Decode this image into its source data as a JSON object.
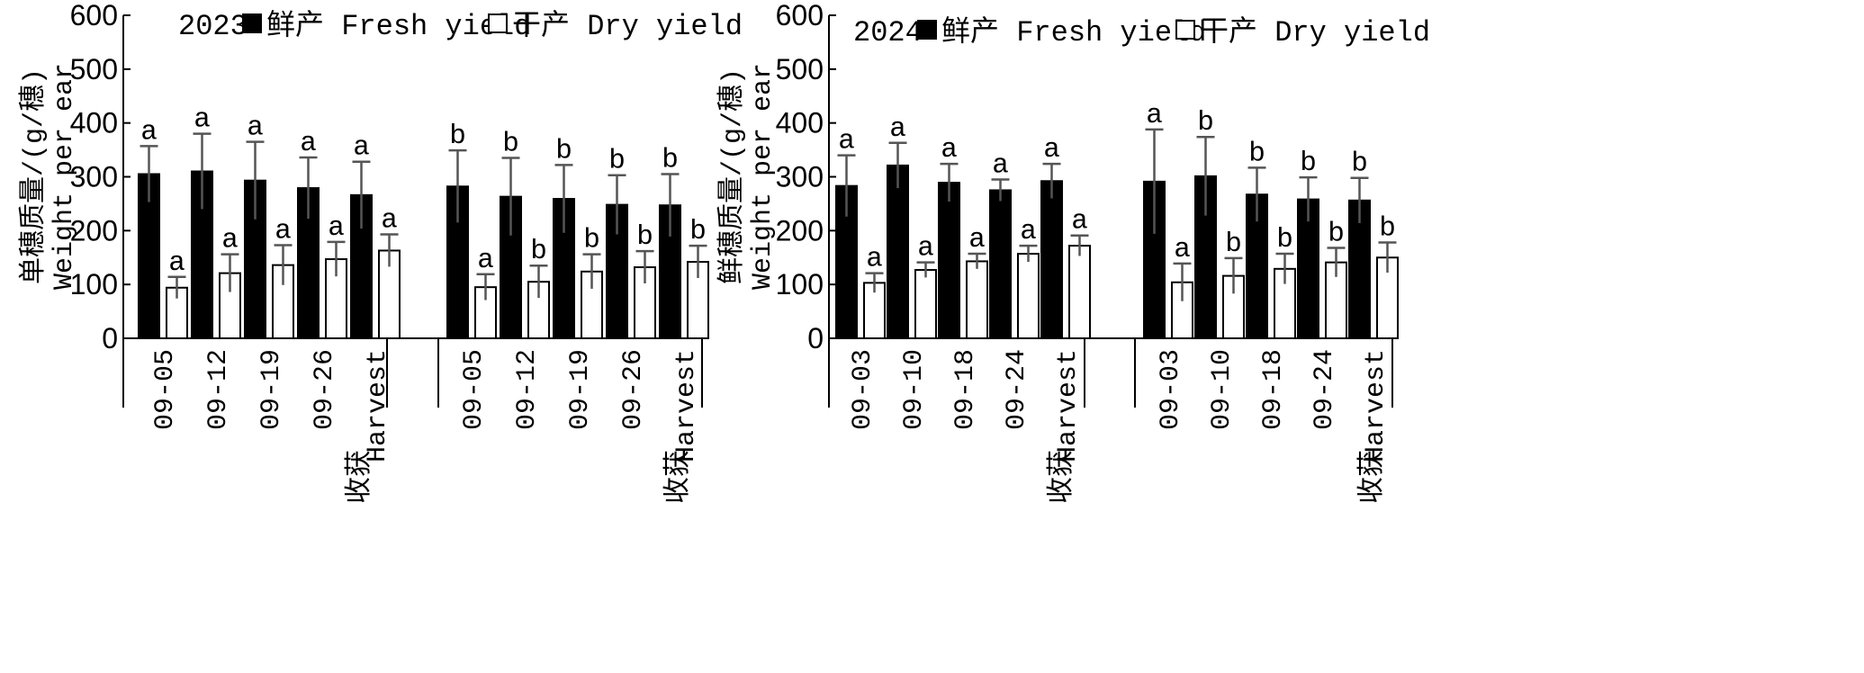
{
  "chart_data": [
    {
      "type": "bar",
      "panel": "left",
      "year_label": "2023",
      "legend": {
        "fresh": "鲜产 Fresh yield",
        "dry": "干产 Dry yield"
      },
      "ylabel_cn": "单穗质量/(g/穗)",
      "ylabel_en": "Weight per ear",
      "ylim": [
        0,
        600
      ],
      "yticks": [
        "0",
        "100",
        "200",
        "300",
        "400",
        "500",
        "600"
      ],
      "harvest_label": "收获",
      "groups": [
        {
          "categories": [
            "09-05",
            "09-12",
            "09-19",
            "09-26",
            "Harvest"
          ],
          "fresh": {
            "values": [
              305,
              310,
              293,
              279,
              266
            ],
            "errors": [
              52,
              70,
              72,
              57,
              62
            ],
            "sig": [
              "a",
              "a",
              "a",
              "a",
              "a"
            ]
          },
          "dry": {
            "values": [
              94,
              121,
              136,
              147,
              163
            ],
            "errors": [
              20,
              35,
              37,
              32,
              30
            ],
            "sig": [
              "a",
              "a",
              "a",
              "a",
              "a"
            ]
          }
        },
        {
          "categories": [
            "09-05",
            "09-12",
            "09-19",
            "09-26",
            "Harvest"
          ],
          "fresh": {
            "values": [
              282,
              263,
              259,
              248,
              247
            ],
            "errors": [
              67,
              72,
              63,
              55,
              58
            ],
            "sig": [
              "b",
              "b",
              "b",
              "b",
              "b"
            ]
          },
          "dry": {
            "values": [
              95,
              105,
              124,
              132,
              142
            ],
            "errors": [
              24,
              30,
              32,
              30,
              30
            ],
            "sig": [
              "a",
              "b",
              "b",
              "b",
              "b"
            ]
          }
        }
      ]
    },
    {
      "type": "bar",
      "panel": "right",
      "year_label": "2024",
      "legend": {
        "fresh": "鲜产 Fresh yield",
        "dry": "干产 Dry yield"
      },
      "ylabel_cn": "鲜穗质量/(g/穗)",
      "ylabel_en": "Weight per ear",
      "ylim": [
        0,
        600
      ],
      "yticks": [
        "0",
        "100",
        "200",
        "300",
        "400",
        "500",
        "600"
      ],
      "harvest_label": "收获",
      "groups": [
        {
          "categories": [
            "09-03",
            "09-10",
            "09-18",
            "09-24",
            "Harvest"
          ],
          "fresh": {
            "values": [
              283,
              321,
              289,
              275,
              292
            ],
            "errors": [
              57,
              42,
              35,
              20,
              32
            ],
            "sig": [
              "a",
              "a",
              "a",
              "a",
              "a"
            ]
          },
          "dry": {
            "values": [
              103,
              127,
              143,
              157,
              172
            ],
            "errors": [
              18,
              14,
              14,
              15,
              19
            ],
            "sig": [
              "a",
              "a",
              "a",
              "a",
              "a"
            ]
          }
        },
        {
          "categories": [
            "09-03",
            "09-10",
            "09-18",
            "09-24",
            "Harvest"
          ],
          "fresh": {
            "values": [
              291,
              301,
              267,
              258,
              256
            ],
            "errors": [
              97,
              73,
              50,
              41,
              42
            ],
            "sig": [
              "a",
              "b",
              "b",
              "b",
              "b"
            ]
          },
          "dry": {
            "values": [
              104,
              116,
              129,
              141,
              150
            ],
            "errors": [
              35,
              33,
              28,
              27,
              28
            ],
            "sig": [
              "a",
              "b",
              "b",
              "b",
              "b"
            ]
          }
        }
      ]
    }
  ],
  "colors": {
    "fresh_bar": "#000000",
    "dry_bar": "#ffffff",
    "error_bar": "#555555",
    "axis": "#000000"
  }
}
